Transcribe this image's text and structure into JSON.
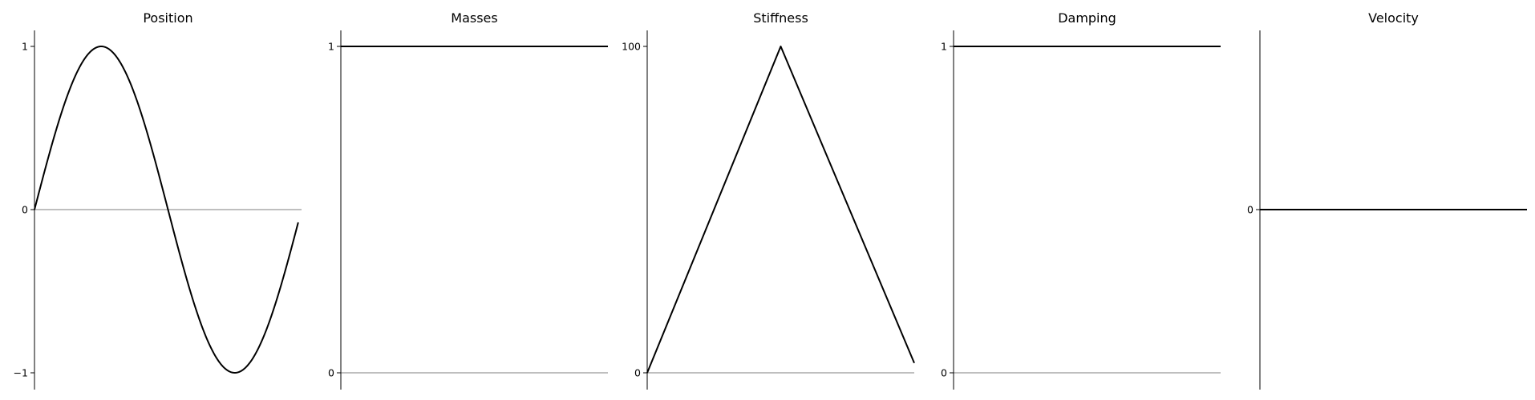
{
  "chart_data": [
    {
      "type": "line",
      "title": "Position",
      "ylim": [
        -1.1,
        1.1
      ],
      "yticks": [
        1,
        0,
        -1
      ],
      "ytick_labels": [
        "1",
        "0",
        "−1"
      ],
      "series": [
        {
          "shape": "sine",
          "x_range": [
            0,
            4
          ],
          "y": "sin(x*pi/2)",
          "x_end": 3.95
        }
      ]
    },
    {
      "type": "line",
      "title": "Masses",
      "ylim": [
        -0.1,
        1.1
      ],
      "yticks": [
        1,
        0
      ],
      "ytick_labels": [
        "1",
        "0"
      ],
      "series": [
        {
          "x": [
            0,
            1
          ],
          "y": [
            1,
            1
          ]
        }
      ]
    },
    {
      "type": "line",
      "title": "Stiffness",
      "ylim": [
        -10,
        110
      ],
      "yticks": [
        100,
        0
      ],
      "ytick_labels": [
        "100",
        "0"
      ],
      "series": [
        {
          "x": [
            0,
            0.5,
            1
          ],
          "y": [
            0,
            100,
            3
          ]
        }
      ]
    },
    {
      "type": "line",
      "title": "Damping",
      "ylim": [
        -0.1,
        1.1
      ],
      "yticks": [
        1,
        0
      ],
      "ytick_labels": [
        "1",
        "0"
      ],
      "series": [
        {
          "x": [
            0,
            1
          ],
          "y": [
            1,
            1
          ]
        }
      ]
    },
    {
      "type": "line",
      "title": "Velocity",
      "ylim": [
        -1.1,
        1.1
      ],
      "yticks": [
        0
      ],
      "ytick_labels": [
        "0"
      ],
      "series": [
        {
          "x": [
            0,
            1
          ],
          "y": [
            0,
            0
          ]
        }
      ]
    }
  ]
}
